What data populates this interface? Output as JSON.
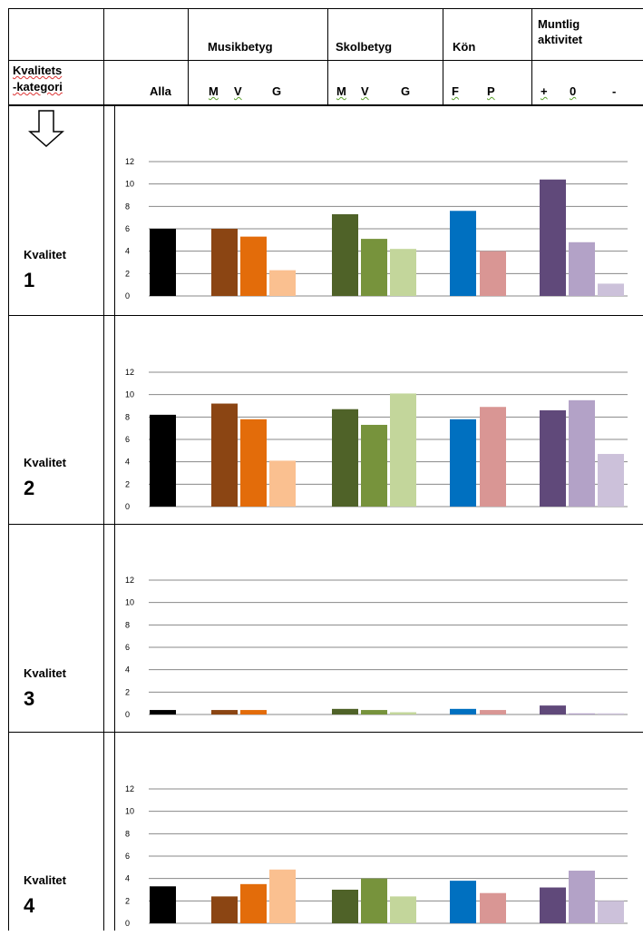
{
  "header": {
    "musik": "Musikbetyg",
    "skol": "Skolbetyg",
    "kon": "Kön",
    "muntlig_line1": "Muntlig",
    "muntlig_line2": "aktivitet",
    "kategori_line1": "Kvalitets",
    "kategori_line2": "-kategori",
    "alla": "Alla",
    "musik_sub": [
      "M",
      "V",
      "G"
    ],
    "skol_sub": [
      "M",
      "V",
      "G"
    ],
    "kon_sub": [
      "F",
      "P"
    ],
    "muntlig_sub": [
      "+",
      "0",
      "-"
    ]
  },
  "arrow_icon": "down-arrow-icon",
  "rows": [
    {
      "word": "Kvalitet",
      "num": "1"
    },
    {
      "word": "Kvalitet",
      "num": "2"
    },
    {
      "word": "Kvalitet",
      "num": "3"
    },
    {
      "word": "Kvalitet",
      "num": "4"
    }
  ],
  "colors": [
    "#000000",
    "#8b4513",
    "#e36c0a",
    "#fac090",
    "#4f6228",
    "#77933c",
    "#c3d69b",
    "#0070c0",
    "#d99694",
    "#60497a",
    "#b3a2c7",
    "#ccc1da"
  ],
  "chart_data": [
    {
      "type": "bar",
      "title": "Kvalitet 1",
      "ylim": [
        0,
        12
      ],
      "y_ticks": [
        "0",
        "2",
        "4",
        "6",
        "8",
        "10",
        "12"
      ],
      "categories": [
        "Alla",
        "Musikbetyg M",
        "Musikbetyg V",
        "Musikbetyg G",
        "Skolbetyg M",
        "Skolbetyg V",
        "Skolbetyg G",
        "Kön F",
        "Kön P",
        "Muntlig aktivitet +",
        "Muntlig aktivitet 0",
        "Muntlig aktivitet -"
      ],
      "values": [
        6.0,
        6.0,
        5.3,
        2.3,
        7.3,
        5.1,
        4.2,
        7.6,
        4.0,
        10.4,
        4.8,
        1.1
      ]
    },
    {
      "type": "bar",
      "title": "Kvalitet 2",
      "ylim": [
        0,
        12
      ],
      "y_ticks": [
        "0",
        "2",
        "4",
        "6",
        "8",
        "10",
        "12"
      ],
      "categories": [
        "Alla",
        "Musikbetyg M",
        "Musikbetyg V",
        "Musikbetyg G",
        "Skolbetyg M",
        "Skolbetyg V",
        "Skolbetyg G",
        "Kön F",
        "Kön P",
        "Muntlig aktivitet +",
        "Muntlig aktivitet 0",
        "Muntlig aktivitet -"
      ],
      "values": [
        8.2,
        9.2,
        7.8,
        4.1,
        8.7,
        7.3,
        10.1,
        7.8,
        8.9,
        8.6,
        9.5,
        4.7
      ]
    },
    {
      "type": "bar",
      "title": "Kvalitet 3",
      "ylim": [
        0,
        12
      ],
      "y_ticks": [
        "0",
        "2",
        "4",
        "6",
        "8",
        "10",
        "12"
      ],
      "categories": [
        "Alla",
        "Musikbetyg M",
        "Musikbetyg V",
        "Musikbetyg G",
        "Skolbetyg M",
        "Skolbetyg V",
        "Skolbetyg G",
        "Kön F",
        "Kön P",
        "Muntlig aktivitet +",
        "Muntlig aktivitet 0",
        "Muntlig aktivitet -"
      ],
      "values": [
        0.4,
        0.4,
        0.4,
        0.0,
        0.5,
        0.4,
        0.2,
        0.5,
        0.4,
        0.8,
        0.1,
        0.1
      ]
    },
    {
      "type": "bar",
      "title": "Kvalitet 4",
      "ylim": [
        0,
        12
      ],
      "y_ticks": [
        "0",
        "2",
        "4",
        "6",
        "8",
        "10",
        "12"
      ],
      "categories": [
        "Alla",
        "Musikbetyg M",
        "Musikbetyg V",
        "Musikbetyg G",
        "Skolbetyg M",
        "Skolbetyg V",
        "Skolbetyg G",
        "Kön F",
        "Kön P",
        "Muntlig aktivitet +",
        "Muntlig aktivitet 0",
        "Muntlig aktivitet -"
      ],
      "values": [
        3.3,
        2.4,
        3.5,
        4.8,
        3.0,
        4.0,
        2.4,
        3.8,
        2.7,
        3.2,
        4.7,
        2.0
      ]
    }
  ]
}
